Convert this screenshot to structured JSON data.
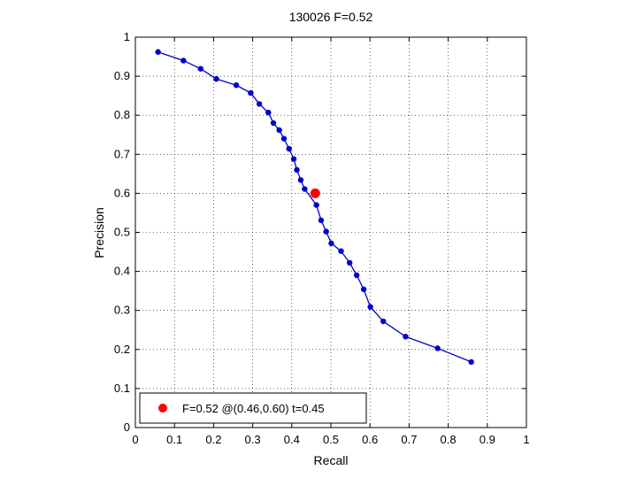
{
  "chart_data": {
    "type": "line",
    "title": "130026 F=0.52",
    "xlabel": "Recall",
    "ylabel": "Precision",
    "xlim": [
      0,
      1
    ],
    "ylim": [
      0,
      1
    ],
    "xticks": [
      "0",
      "0.1",
      "0.2",
      "0.3",
      "0.4",
      "0.5",
      "0.6",
      "0.7",
      "0.8",
      "0.9",
      "1"
    ],
    "yticks": [
      "0",
      "0.1",
      "0.2",
      "0.3",
      "0.4",
      "0.5",
      "0.6",
      "0.7",
      "0.8",
      "0.9",
      "1"
    ],
    "grid": true,
    "series": [
      {
        "color": "#0000cc",
        "points": [
          [
            0.058,
            0.962
          ],
          [
            0.123,
            0.94
          ],
          [
            0.167,
            0.919
          ],
          [
            0.207,
            0.893
          ],
          [
            0.258,
            0.877
          ],
          [
            0.295,
            0.857
          ],
          [
            0.317,
            0.829
          ],
          [
            0.34,
            0.807
          ],
          [
            0.353,
            0.78
          ],
          [
            0.368,
            0.762
          ],
          [
            0.38,
            0.74
          ],
          [
            0.393,
            0.714
          ],
          [
            0.405,
            0.688
          ],
          [
            0.413,
            0.66
          ],
          [
            0.423,
            0.634
          ],
          [
            0.433,
            0.611
          ],
          [
            0.463,
            0.57
          ],
          [
            0.475,
            0.531
          ],
          [
            0.488,
            0.502
          ],
          [
            0.501,
            0.472
          ],
          [
            0.526,
            0.452
          ],
          [
            0.548,
            0.422
          ],
          [
            0.566,
            0.39
          ],
          [
            0.584,
            0.354
          ],
          [
            0.601,
            0.309
          ],
          [
            0.634,
            0.272
          ],
          [
            0.691,
            0.233
          ],
          [
            0.773,
            0.203
          ],
          [
            0.859,
            0.168
          ]
        ]
      }
    ],
    "highlight": {
      "x": 0.46,
      "y": 0.6,
      "color": "#ff0000"
    },
    "legend": {
      "position": "bottom-left",
      "label": "F=0.52 @(0.46,0.60) t=0.45"
    }
  }
}
